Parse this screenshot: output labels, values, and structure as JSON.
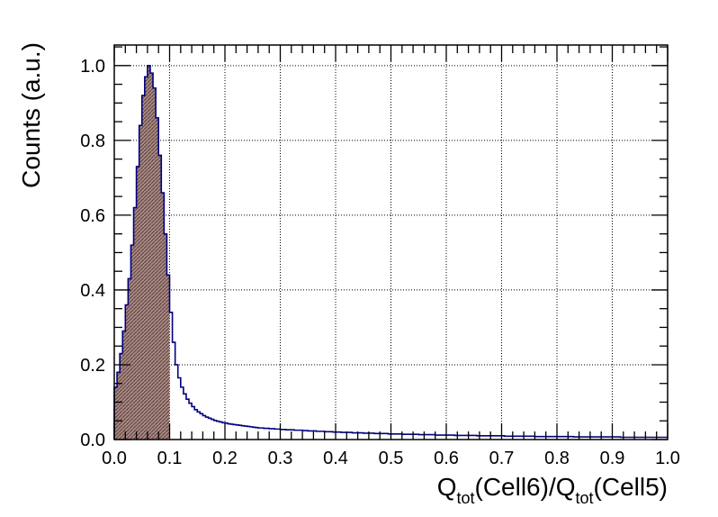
{
  "chart_data": {
    "type": "histogram",
    "xlabel": {
      "parts": [
        "Q",
        "tot",
        "(Cell6)/Q",
        "tot",
        "(Cell5)"
      ]
    },
    "ylabel": "Counts (a.u.)",
    "xlim": [
      0,
      1
    ],
    "ylim": [
      0,
      1.055
    ],
    "x_ticks": [
      "0.0",
      "0.1",
      "0.2",
      "0.3",
      "0.4",
      "0.5",
      "0.6",
      "0.7",
      "0.8",
      "0.9",
      "1.0"
    ],
    "y_ticks": [
      "0.0",
      "0.2",
      "0.4",
      "0.6",
      "0.8",
      "1.0"
    ],
    "x_tick_values": [
      0,
      0.1,
      0.2,
      0.3,
      0.4,
      0.5,
      0.6,
      0.7,
      0.8,
      0.9,
      1.0
    ],
    "y_tick_values": [
      0,
      0.2,
      0.4,
      0.6,
      0.8,
      1.0
    ],
    "grid": true,
    "bin_width": 0.005,
    "bins_x_start": 0,
    "bin_values": [
      0.14,
      0.18,
      0.23,
      0.29,
      0.36,
      0.43,
      0.52,
      0.62,
      0.73,
      0.84,
      0.92,
      0.97,
      1.0,
      0.98,
      0.94,
      0.86,
      0.76,
      0.66,
      0.55,
      0.44,
      0.34,
      0.26,
      0.2,
      0.165,
      0.14,
      0.122,
      0.108,
      0.097,
      0.088,
      0.08,
      0.074,
      0.069,
      0.064,
      0.06,
      0.057,
      0.054,
      0.051,
      0.049,
      0.047,
      0.045,
      0.044,
      0.042,
      0.041,
      0.04,
      0.039,
      0.038,
      0.037,
      0.036,
      0.035,
      0.034,
      0.033,
      0.032,
      0.031,
      0.031,
      0.03,
      0.03,
      0.029,
      0.029,
      0.028,
      0.028,
      0.027,
      0.027,
      0.026,
      0.026,
      0.026,
      0.025,
      0.025,
      0.025,
      0.024,
      0.024,
      0.023,
      0.023,
      0.023,
      0.022,
      0.022,
      0.022,
      0.021,
      0.021,
      0.021,
      0.02,
      0.02,
      0.02,
      0.019,
      0.019,
      0.019,
      0.019,
      0.018,
      0.018,
      0.018,
      0.018,
      0.017,
      0.017,
      0.017,
      0.017,
      0.016,
      0.016,
      0.016,
      0.016,
      0.016,
      0.015,
      0.015,
      0.015,
      0.015,
      0.015,
      0.014,
      0.014,
      0.014,
      0.014,
      0.014,
      0.014,
      0.013,
      0.013,
      0.013,
      0.013,
      0.013,
      0.013,
      0.012,
      0.012,
      0.012,
      0.012,
      0.012,
      0.012,
      0.012,
      0.011,
      0.011,
      0.011,
      0.011,
      0.011,
      0.011,
      0.011,
      0.011,
      0.01,
      0.01,
      0.01,
      0.01,
      0.01,
      0.01,
      0.01,
      0.01,
      0.01,
      0.01,
      0.009,
      0.009,
      0.009,
      0.009,
      0.009,
      0.009,
      0.009,
      0.009,
      0.009,
      0.009,
      0.009,
      0.008,
      0.008,
      0.008,
      0.008,
      0.008,
      0.008,
      0.008,
      0.008,
      0.008,
      0.008,
      0.008,
      0.008,
      0.008,
      0.008,
      0.007,
      0.007,
      0.007,
      0.007,
      0.007,
      0.007,
      0.007,
      0.007,
      0.007,
      0.007,
      0.007,
      0.007,
      0.007,
      0.007,
      0.007,
      0.007,
      0.007,
      0.006,
      0.006,
      0.006,
      0.006,
      0.006,
      0.006,
      0.006,
      0.006,
      0.006,
      0.006,
      0.006,
      0.006,
      0.006,
      0.006,
      0.006,
      0.006,
      0.006
    ],
    "shaded_range": [
      0,
      0.1
    ],
    "colors": {
      "line": "#000080",
      "shade_fill": "#a88a85",
      "shade_hatch": "#5c3d3a",
      "grid": "#000000",
      "frame": "#000000"
    }
  }
}
